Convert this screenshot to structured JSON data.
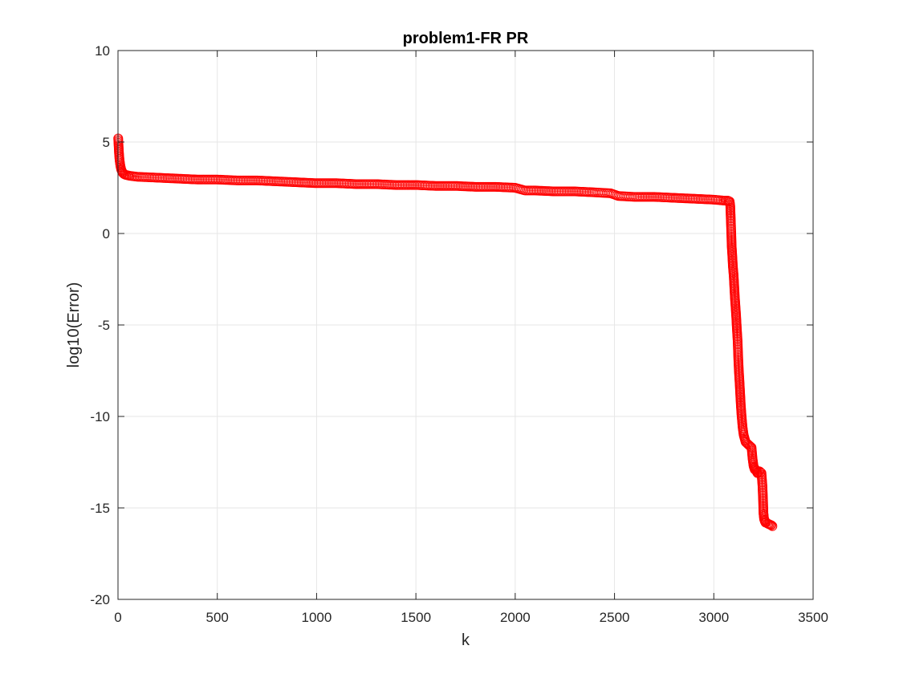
{
  "chart_data": {
    "type": "scatter",
    "title": "problem1-FR PR",
    "xlabel": "k",
    "ylabel": "log10(Error)",
    "xlim": [
      0,
      3500
    ],
    "ylim": [
      -20,
      10
    ],
    "xticks": [
      0,
      500,
      1000,
      1500,
      2000,
      2500,
      3000,
      3500
    ],
    "yticks": [
      -20,
      -15,
      -10,
      -5,
      0,
      5,
      10
    ],
    "xtick_labels": [
      "0",
      "500",
      "1000",
      "1500",
      "2000",
      "2500",
      "3000",
      "3500"
    ],
    "ytick_labels": [
      "-20",
      "-15",
      "-10",
      "-5",
      "0",
      "5",
      "10"
    ],
    "grid": true,
    "marker": "circle",
    "marker_color": "#ff0000",
    "series": [
      {
        "x": [
          1,
          3,
          5,
          8,
          12,
          16,
          20,
          25,
          30,
          40,
          60,
          100,
          200,
          300,
          400,
          500,
          600,
          700,
          800,
          900,
          1000,
          1100,
          1200,
          1300,
          1400,
          1500,
          1600,
          1700,
          1800,
          1900,
          2000,
          2050,
          2100,
          2200,
          2300,
          2400,
          2480,
          2520,
          2600,
          2700,
          2800,
          2900,
          3000,
          3050,
          3070,
          3080,
          3083,
          3085,
          3088,
          3090,
          3093,
          3096,
          3100,
          3103,
          3106,
          3110,
          3113,
          3116,
          3120,
          3123,
          3126,
          3130,
          3133,
          3136,
          3140,
          3145,
          3150,
          3155,
          3160,
          3170,
          3180,
          3190,
          3195,
          3200,
          3203,
          3206,
          3210,
          3215,
          3220,
          3230,
          3240,
          3245,
          3248,
          3250,
          3253,
          3256,
          3260,
          3265,
          3270,
          3280,
          3290,
          3295
        ],
        "y": [
          5.2,
          4.8,
          4.4,
          4.0,
          3.7,
          3.5,
          3.4,
          3.3,
          3.25,
          3.2,
          3.15,
          3.1,
          3.05,
          3.0,
          2.95,
          2.95,
          2.9,
          2.9,
          2.85,
          2.8,
          2.75,
          2.75,
          2.7,
          2.7,
          2.65,
          2.65,
          2.6,
          2.6,
          2.55,
          2.55,
          2.5,
          2.35,
          2.35,
          2.3,
          2.3,
          2.25,
          2.2,
          2.05,
          2.0,
          2.0,
          1.95,
          1.9,
          1.85,
          1.8,
          1.8,
          1.75,
          1.5,
          0.9,
          0.0,
          -0.7,
          -1.2,
          -1.8,
          -2.3,
          -2.9,
          -3.5,
          -4.1,
          -4.6,
          -5.2,
          -5.9,
          -6.8,
          -7.5,
          -8.2,
          -8.8,
          -9.4,
          -10.0,
          -10.6,
          -11.0,
          -11.2,
          -11.4,
          -11.5,
          -11.6,
          -11.7,
          -12.3,
          -12.7,
          -12.8,
          -12.9,
          -12.9,
          -13.0,
          -13.1,
          -13.0,
          -13.1,
          -13.8,
          -14.6,
          -15.3,
          -15.6,
          -15.7,
          -15.8,
          -15.8,
          -15.85,
          -15.9,
          -15.95,
          -16.0
        ]
      }
    ]
  }
}
